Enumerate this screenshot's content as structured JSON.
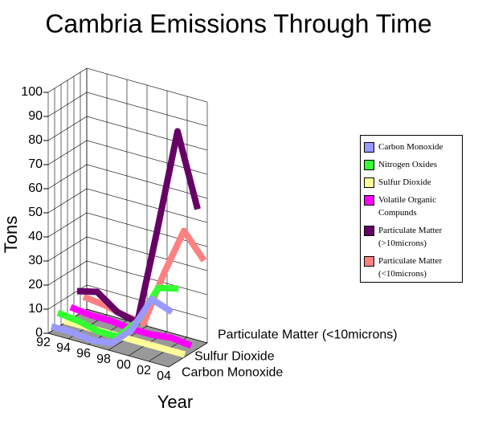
{
  "chart_data": {
    "type": "ribbon3d",
    "title": "Cambria Emissions Through Time",
    "y_label": "Tons",
    "x_label": "Year",
    "categories": [
      "92",
      "94",
      "96",
      "98",
      "00",
      "02",
      "04"
    ],
    "series": [
      {
        "name": "Carbon Monoxide",
        "color": "#9999ff",
        "values": [
          2,
          2,
          1,
          2,
          10,
          25,
          22
        ]
      },
      {
        "name": "Nitrogen Oxides",
        "color": "#33ff33",
        "values": [
          6,
          5,
          3,
          3,
          12,
          28,
          30
        ]
      },
      {
        "name": "Sulfur Dioxide",
        "color": "#ffff99",
        "values": [
          1,
          1,
          1,
          1,
          1,
          1,
          1
        ]
      },
      {
        "name": "Volatile Organic Compunds",
        "color": "#ff00ff",
        "values": [
          5,
          4,
          4,
          3,
          3,
          4,
          3
        ]
      },
      {
        "name": "Particulate Matter (>10microns)",
        "color": "#660066",
        "values": [
          10,
          12,
          6,
          4,
          45,
          88,
          58
        ]
      },
      {
        "name": "Particulate Matter (<10microns)",
        "color": "#ff8080",
        "values": [
          6,
          5,
          3,
          2,
          25,
          45,
          35
        ]
      }
    ],
    "depth_labels": [
      0,
      2,
      5
    ],
    "ylim": [
      0,
      100
    ],
    "yticks": [
      0,
      10,
      20,
      30,
      40,
      50,
      60,
      70,
      80,
      90,
      100
    ],
    "grid": true
  }
}
